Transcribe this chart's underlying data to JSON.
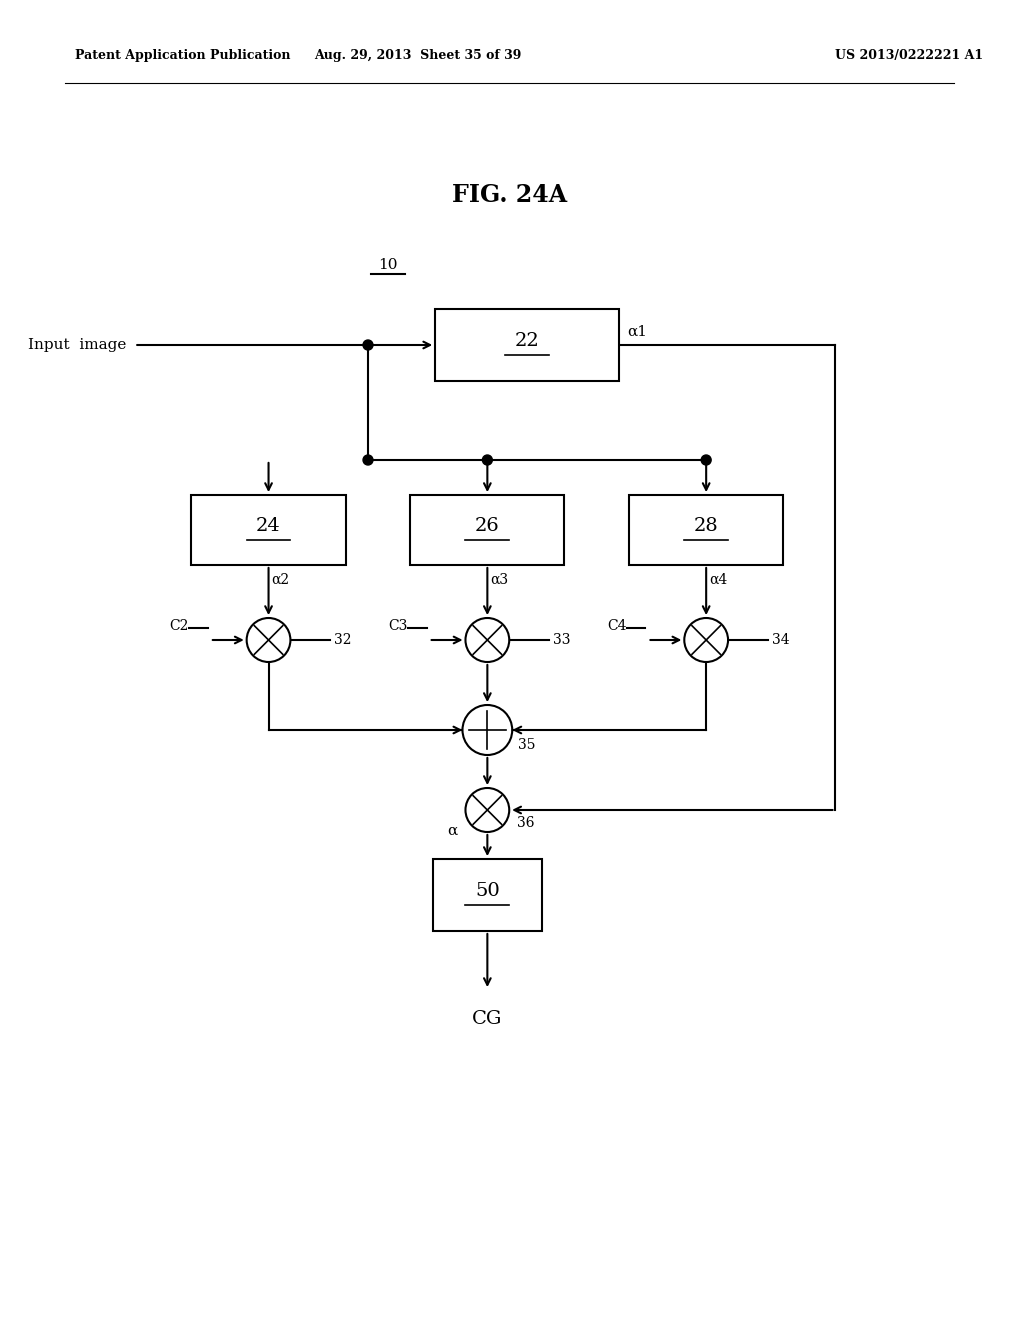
{
  "title": "FIG. 24A",
  "header_left": "Patent Application Publication",
  "header_mid": "Aug. 29, 2013  Sheet 35 of 39",
  "header_right": "US 2013/0222221 A1",
  "bg_color": "#ffffff",
  "line_color": "#000000",
  "fig_width": 10.24,
  "fig_height": 13.2,
  "dpi": 100
}
